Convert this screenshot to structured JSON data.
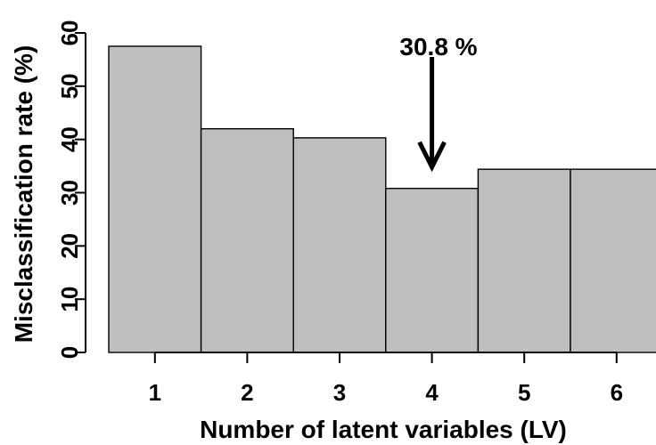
{
  "chart_data": {
    "type": "bar",
    "categories": [
      "1",
      "2",
      "3",
      "4",
      "5",
      "6"
    ],
    "values": [
      57.5,
      42.0,
      40.3,
      30.8,
      34.4,
      34.4
    ],
    "title": "",
    "xlabel": "Number of latent variables (LV)",
    "ylabel": "Misclassification rate (%)",
    "ylim": [
      0,
      60
    ],
    "yticks": [
      "0",
      "10",
      "20",
      "30",
      "40",
      "50",
      "60"
    ],
    "grid": false,
    "bar_color": "#bfbfbf",
    "edge_color": "#000000",
    "annotation": {
      "text": "30.8 %",
      "target_category": "4",
      "target_value": 30.8,
      "arrow": "down"
    }
  }
}
